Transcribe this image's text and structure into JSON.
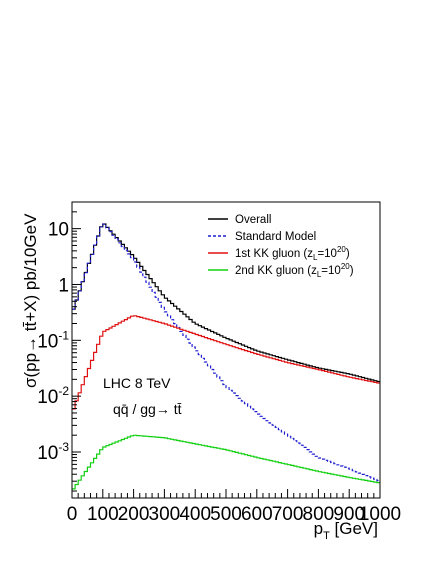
{
  "chart_data": {
    "type": "line",
    "title": "",
    "xlabel": "p_T [GeV]",
    "ylabel": "σ(pp→ tt̄+X) pb/10GeV",
    "xlim": [
      0,
      1000
    ],
    "ylim": [
      0.00015,
      30
    ],
    "y_scale": "log",
    "x_tick_labels": [
      "0",
      "100",
      "200",
      "300",
      "400",
      "500",
      "600",
      "700",
      "800",
      "900",
      "1000"
    ],
    "y_tick_labels": [
      {
        "value": 0.001,
        "base": "10",
        "exp": "-3"
      },
      {
        "value": 0.01,
        "base": "10",
        "exp": "-2"
      },
      {
        "value": 0.1,
        "base": "10",
        "exp": "-1"
      },
      {
        "value": 1,
        "base": "1",
        "exp": ""
      },
      {
        "value": 10,
        "base": "10",
        "exp": ""
      }
    ],
    "legend_position": "top-right",
    "annotations": [
      "LHC 8 TeV",
      "qq̄ / gg→ tt̄"
    ],
    "x": [
      0,
      100,
      200,
      300,
      400,
      500,
      600,
      700,
      800,
      900,
      1000
    ],
    "series": [
      {
        "name": "Overall",
        "color": "#000000",
        "style": "solid",
        "histogram": true,
        "values": [
          0.3,
          13,
          3.2,
          0.6,
          0.2,
          0.11,
          0.065,
          0.045,
          0.032,
          0.025,
          0.018
        ]
      },
      {
        "name": "Standard Model",
        "color": "#1f1fd0",
        "style": "dashed",
        "histogram": true,
        "values": [
          0.3,
          13,
          2.8,
          0.35,
          0.07,
          0.015,
          0.005,
          0.002,
          0.0008,
          0.0005,
          0.0003
        ]
      },
      {
        "name": "1st KK gluon (z_L=10^20)",
        "color": "#e01010",
        "style": "solid",
        "histogram": true,
        "values": [
          0.005,
          0.14,
          0.28,
          0.2,
          0.13,
          0.085,
          0.057,
          0.04,
          0.03,
          0.022,
          0.017
        ]
      },
      {
        "name": "2nd KK gluon (z_L=10^20)",
        "color": "#10d010",
        "style": "solid",
        "histogram": true,
        "values": [
          0.0002,
          0.0012,
          0.002,
          0.0018,
          0.0014,
          0.0011,
          0.0008,
          0.0006,
          0.00045,
          0.00035,
          0.00028
        ]
      }
    ]
  },
  "legend": [
    {
      "label": "Overall",
      "sub": "",
      "sup": "",
      "tail": "",
      "color": "#000000",
      "dash": ""
    },
    {
      "label": "Standard Model",
      "sub": "",
      "sup": "",
      "tail": "",
      "color": "#1f1fd0",
      "dash": "3,2"
    },
    {
      "label": "1st KK gluon (z",
      "sub": "L",
      "sup": "20",
      "tail": ")",
      "color": "#e01010",
      "dash": ""
    },
    {
      "label": "2nd KK gluon (z",
      "sub": "L",
      "sup": "20",
      "tail": ")",
      "color": "#10d010",
      "dash": ""
    }
  ],
  "labels": {
    "xlabel_main": "p",
    "xlabel_sub": "T",
    "xlabel_tail": " [GeV]",
    "ylabel": "σ(pp→ tt̄+X) pb/10GeV",
    "annot_1": "LHC 8 TeV",
    "annot_2": "qq̄ / gg→ tt̄",
    "legend_eq": "=10"
  }
}
